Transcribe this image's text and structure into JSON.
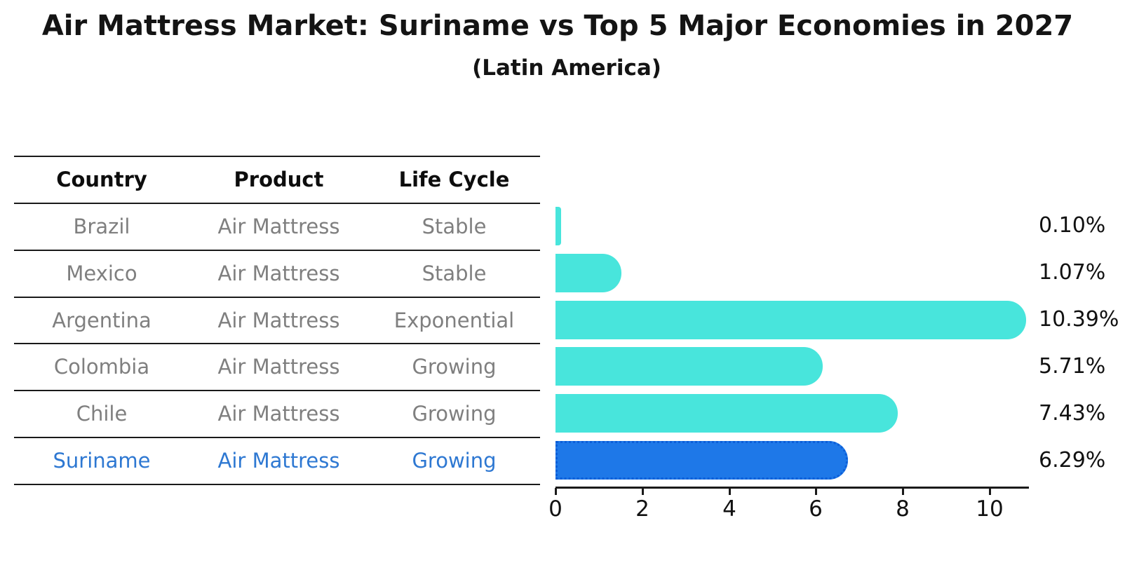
{
  "title": "Air Mattress Market: Suriname vs Top 5 Major Economies in 2027",
  "subtitle": "(Latin America)",
  "table": {
    "headers": [
      "Country",
      "Product",
      "Life Cycle"
    ],
    "rows": [
      {
        "country": "Brazil",
        "product": "Air Mattress",
        "life_cycle": "Stable",
        "highlight": false
      },
      {
        "country": "Mexico",
        "product": "Air Mattress",
        "life_cycle": "Stable",
        "highlight": false
      },
      {
        "country": "Argentina",
        "product": "Air Mattress",
        "life_cycle": "Exponential",
        "highlight": false
      },
      {
        "country": "Colombia",
        "product": "Air Mattress",
        "life_cycle": "Growing",
        "highlight": false
      },
      {
        "country": "Chile",
        "product": "Air Mattress",
        "life_cycle": "Growing",
        "highlight": false
      },
      {
        "country": "Suriname",
        "product": "Air Mattress",
        "life_cycle": "Growing",
        "highlight": true
      }
    ]
  },
  "chart_data": {
    "type": "bar",
    "orientation": "horizontal",
    "title": "Air Mattress Market: Suriname vs Top 5 Major Economies in 2027",
    "subtitle": "(Latin America)",
    "categories": [
      "Brazil",
      "Mexico",
      "Argentina",
      "Colombia",
      "Chile",
      "Suriname"
    ],
    "values": [
      0.1,
      1.07,
      10.39,
      5.71,
      7.43,
      6.29
    ],
    "value_labels": [
      "0.10%",
      "1.07%",
      "10.39%",
      "5.71%",
      "7.43%",
      "6.29%"
    ],
    "xlabel": "",
    "ylabel": "",
    "xticks": [
      0,
      2,
      4,
      6,
      8,
      10
    ],
    "xlim": [
      0,
      10.9
    ],
    "grid": false,
    "legend": null,
    "highlight_index": 5
  },
  "colors": {
    "bar": "#48e5dc",
    "highlight_bar": "#1e78e8",
    "highlight_bar_border": "#0c5ed8",
    "highlight_text": "#2e78d2",
    "table_text": "#7f7f7f",
    "header_text": "#0d0d0d",
    "axis": "#1a1a1a"
  }
}
